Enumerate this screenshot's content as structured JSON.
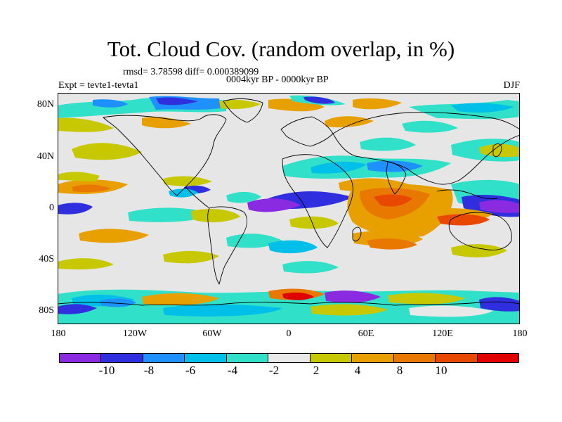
{
  "title": "Tot. Cloud Cov. (random overlap, in %)",
  "stats": "rmsd= 3.78598 diff= 0.000389099",
  "period": "0004kyr BP - 0000kyr BP",
  "expt": "Expt = tevte1-tevta1",
  "season": "DJF",
  "y_ticks": [
    "80N",
    "40N",
    "0",
    "40S",
    "80S"
  ],
  "x_ticks": [
    "180",
    "120W",
    "60W",
    "0",
    "60E",
    "120E",
    "180"
  ],
  "colorbar": {
    "colors": [
      "#8a2be2",
      "#2f2fe0",
      "#1e90ff",
      "#00bfe8",
      "#30e0c8",
      "#e8e8e8",
      "#c8c800",
      "#e8a000",
      "#e87800",
      "#e84800",
      "#e00000"
    ],
    "labels": [
      "-10",
      "-8",
      "-6",
      "-4",
      "-2",
      "2",
      "4",
      "8",
      "10"
    ]
  },
  "colors": {
    "background": "#e6e6e6",
    "coast": "#000000"
  }
}
